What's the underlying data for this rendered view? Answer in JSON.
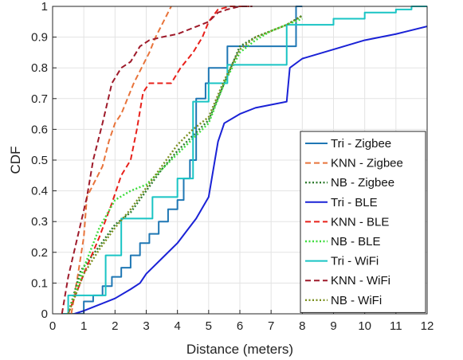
{
  "chart_data": {
    "type": "line",
    "title": "",
    "xlabel": "Distance (meters)",
    "ylabel": "CDF",
    "xlim": [
      0,
      12
    ],
    "ylim": [
      0,
      1
    ],
    "xticks": [
      0,
      1,
      2,
      3,
      4,
      5,
      6,
      7,
      8,
      9,
      10,
      11,
      12
    ],
    "yticks": [
      0,
      0.1,
      0.2,
      0.3,
      0.4,
      0.5,
      0.6,
      0.7,
      0.8,
      0.9,
      1
    ],
    "grid": true,
    "legend_position": "lower-right",
    "series": [
      {
        "name": "Tri - Zigbee",
        "color": "#1f77b4",
        "dash": "solid",
        "step": true,
        "x": [
          0.5,
          1.0,
          1.3,
          1.6,
          1.9,
          2.2,
          2.5,
          2.8,
          3.1,
          3.4,
          3.7,
          4.0,
          4.2,
          4.4,
          4.6,
          4.9,
          5.0,
          5.3,
          5.6,
          6.0,
          6.5,
          7.0,
          7.5,
          7.8,
          8.0
        ],
        "y": [
          0,
          0.04,
          0.06,
          0.09,
          0.12,
          0.15,
          0.19,
          0.23,
          0.26,
          0.3,
          0.34,
          0.37,
          0.44,
          0.5,
          0.7,
          0.75,
          0.8,
          0.8,
          0.87,
          0.87,
          0.87,
          0.87,
          0.87,
          1.0,
          1.0
        ]
      },
      {
        "name": "KNN - Zigbee",
        "color": "#e8743b",
        "dash": "dashed",
        "step": false,
        "x": [
          0.6,
          0.8,
          1.0,
          1.1,
          1.3,
          1.6,
          1.8,
          2.0,
          2.2,
          2.4,
          2.6,
          2.9,
          3.1,
          3.3,
          3.6,
          3.8
        ],
        "y": [
          0,
          0.12,
          0.25,
          0.38,
          0.42,
          0.48,
          0.56,
          0.62,
          0.65,
          0.7,
          0.75,
          0.81,
          0.85,
          0.9,
          0.96,
          1.0
        ]
      },
      {
        "name": "NB - Zigbee",
        "color": "#2c7a2c",
        "dash": "dotted",
        "step": false,
        "x": [
          0.5,
          0.9,
          1.5,
          2.0,
          2.5,
          3.0,
          3.5,
          4.0,
          4.5,
          5.0,
          5.5,
          6.0,
          6.5,
          7.0,
          7.5,
          8.0
        ],
        "y": [
          0,
          0.14,
          0.22,
          0.29,
          0.33,
          0.4,
          0.47,
          0.53,
          0.58,
          0.63,
          0.75,
          0.87,
          0.9,
          0.92,
          0.94,
          0.97
        ]
      },
      {
        "name": "Tri - BLE",
        "color": "#1a22d6",
        "dash": "solid",
        "step": false,
        "x": [
          0.7,
          1.0,
          1.5,
          2.0,
          2.5,
          2.8,
          3.0,
          3.5,
          4.0,
          4.3,
          4.6,
          5.0,
          5.3,
          5.5,
          6.0,
          6.5,
          7.0,
          7.5,
          7.6,
          8.0,
          9.0,
          10.0,
          11.0,
          12.0
        ],
        "y": [
          0,
          0.01,
          0.03,
          0.05,
          0.08,
          0.1,
          0.13,
          0.18,
          0.23,
          0.27,
          0.31,
          0.38,
          0.56,
          0.62,
          0.65,
          0.67,
          0.68,
          0.69,
          0.8,
          0.83,
          0.86,
          0.89,
          0.91,
          0.935
        ]
      },
      {
        "name": "KNN - BLE",
        "color": "#e8201a",
        "dash": "dashed",
        "step": false,
        "x": [
          0.5,
          1.0,
          1.5,
          1.9,
          2.2,
          2.5,
          2.7,
          2.9,
          3.1,
          3.4,
          3.8,
          4.1,
          4.5,
          4.8,
          5.0,
          5.3,
          5.7,
          6.0,
          6.3
        ],
        "y": [
          0,
          0.13,
          0.25,
          0.36,
          0.45,
          0.5,
          0.6,
          0.72,
          0.75,
          0.75,
          0.75,
          0.8,
          0.85,
          0.9,
          0.95,
          0.99,
          1.0,
          1.0,
          1.0
        ]
      },
      {
        "name": "NB - BLE",
        "color": "#3ddc3d",
        "dash": "dotted",
        "step": false,
        "x": [
          0.5,
          1.0,
          1.5,
          2.0,
          2.5,
          3.0,
          3.5,
          4.0,
          4.5,
          5.0,
          5.5,
          6.0,
          6.5,
          7.0,
          7.5,
          8.0
        ],
        "y": [
          0,
          0.15,
          0.28,
          0.37,
          0.4,
          0.42,
          0.47,
          0.52,
          0.57,
          0.62,
          0.75,
          0.85,
          0.89,
          0.92,
          0.94,
          0.96
        ]
      },
      {
        "name": "Tri - WiFi",
        "color": "#19c4c4",
        "dash": "solid",
        "step": true,
        "x": [
          0.3,
          0.5,
          1.0,
          1.3,
          1.7,
          2.2,
          2.3,
          2.6,
          3.2,
          3.6,
          3.7,
          4.0,
          4.5,
          4.8,
          5.0,
          5.6,
          7.0,
          7.5,
          8.0,
          9.0,
          10.0,
          11.0,
          11.5,
          12.0
        ],
        "y": [
          0,
          0.06,
          0.06,
          0.06,
          0.19,
          0.31,
          0.31,
          0.31,
          0.38,
          0.38,
          0.38,
          0.44,
          0.69,
          0.69,
          0.75,
          0.81,
          0.81,
          0.94,
          0.94,
          0.96,
          0.98,
          0.99,
          1.0,
          1.0
        ]
      },
      {
        "name": "KNN - WiFi",
        "color": "#9e1a2a",
        "dash": "dashed",
        "step": false,
        "x": [
          0.3,
          0.5,
          0.8,
          1.1,
          1.3,
          1.6,
          1.9,
          2.2,
          2.5,
          2.8,
          3.1,
          3.5,
          4.0,
          4.5,
          5.0,
          5.3,
          5.6,
          6.0,
          6.4
        ],
        "y": [
          0,
          0.12,
          0.25,
          0.38,
          0.5,
          0.62,
          0.75,
          0.8,
          0.82,
          0.87,
          0.89,
          0.9,
          0.91,
          0.93,
          0.95,
          0.98,
          0.99,
          1.0,
          1.0
        ]
      },
      {
        "name": "NB - WiFi",
        "color": "#7a8f1e",
        "dash": "dotted",
        "step": false,
        "x": [
          0.5,
          1.0,
          1.5,
          2.0,
          2.5,
          3.0,
          3.5,
          4.0,
          4.5,
          5.0,
          5.5,
          6.0,
          6.5,
          7.0,
          7.5,
          8.0
        ],
        "y": [
          0,
          0.13,
          0.21,
          0.28,
          0.34,
          0.41,
          0.48,
          0.55,
          0.6,
          0.64,
          0.76,
          0.86,
          0.9,
          0.92,
          0.94,
          0.97
        ]
      }
    ]
  }
}
